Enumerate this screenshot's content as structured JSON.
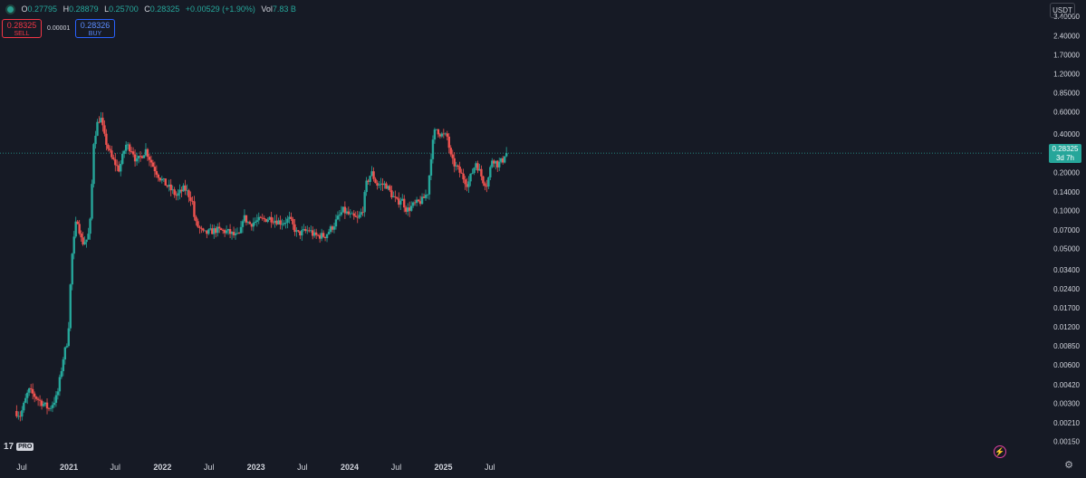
{
  "header": {
    "o_label": "O",
    "o_value": "0.27795",
    "h_label": "H",
    "h_value": "0.28879",
    "l_label": "L",
    "l_value": "0.25700",
    "c_label": "C",
    "c_value": "0.28325",
    "change": "+0.00529 (+1.90%)",
    "vol_label": "Vol",
    "vol_value": "7.83 B"
  },
  "trade": {
    "sell_price": "0.28325",
    "sell_label": "SELL",
    "spread": "0.00001",
    "buy_price": "0.28326",
    "buy_label": "BUY"
  },
  "currency": "USDT",
  "brand": {
    "logo": "17",
    "pro": "PRO"
  },
  "last_price": {
    "value": "0.28325",
    "countdown": "3d 7h",
    "color": "#26a69a"
  },
  "icons": {
    "bolt": "bolt-icon",
    "settings": "gear-icon"
  },
  "chart_data": {
    "type": "candlestick",
    "scale": "log",
    "title": "",
    "xlabel": "",
    "ylabel": "",
    "ylim": [
      0.00125,
      4.5
    ],
    "up_color": "#26a69a",
    "down_color": "#ef5350",
    "y_ticks": [
      "3.40000",
      "2.40000",
      "1.70000",
      "1.20000",
      "0.85000",
      "0.60000",
      "0.40000",
      "0.20000",
      "0.14000",
      "0.10000",
      "0.07000",
      "0.05000",
      "0.03400",
      "0.02400",
      "0.01700",
      "0.01200",
      "0.00850",
      "0.00600",
      "0.00420",
      "0.00300",
      "0.00210",
      "0.00150"
    ],
    "x_ticks": [
      "Jul",
      "2021",
      "Jul",
      "2022",
      "Jul",
      "2023",
      "Jul",
      "2024",
      "Jul",
      "2025",
      "Jul"
    ],
    "anchors": [
      [
        "2020-06-08",
        0.0026
      ],
      [
        "2020-06-30",
        0.0024
      ],
      [
        "2020-08-01",
        0.0038
      ],
      [
        "2020-09-15",
        0.0031
      ],
      [
        "2020-10-20",
        0.0027
      ],
      [
        "2020-11-20",
        0.0034
      ],
      [
        "2020-12-15",
        0.007
      ],
      [
        "2020-12-28",
        0.009
      ],
      [
        "2021-01-05",
        0.013
      ],
      [
        "2021-01-15",
        0.04
      ],
      [
        "2021-02-05",
        0.09
      ],
      [
        "2021-02-25",
        0.055
      ],
      [
        "2021-03-20",
        0.06
      ],
      [
        "2021-04-01",
        0.09
      ],
      [
        "2021-04-10",
        0.33
      ],
      [
        "2021-04-25",
        0.48
      ],
      [
        "2021-05-08",
        0.55
      ],
      [
        "2021-05-25",
        0.37
      ],
      [
        "2021-06-20",
        0.26
      ],
      [
        "2021-07-20",
        0.21
      ],
      [
        "2021-08-15",
        0.33
      ],
      [
        "2021-09-10",
        0.3
      ],
      [
        "2021-09-25",
        0.24
      ],
      [
        "2021-11-01",
        0.3
      ],
      [
        "2021-12-01",
        0.22
      ],
      [
        "2021-12-31",
        0.175
      ],
      [
        "2022-02-01",
        0.15
      ],
      [
        "2022-03-01",
        0.13
      ],
      [
        "2022-04-01",
        0.15
      ],
      [
        "2022-05-01",
        0.12
      ],
      [
        "2022-05-12",
        0.08
      ],
      [
        "2022-06-15",
        0.065
      ],
      [
        "2022-08-01",
        0.07
      ],
      [
        "2022-09-15",
        0.068
      ],
      [
        "2022-10-20",
        0.062
      ],
      [
        "2022-11-05",
        0.065
      ],
      [
        "2022-11-15",
        0.09
      ],
      [
        "2022-12-10",
        0.078
      ],
      [
        "2023-01-15",
        0.083
      ],
      [
        "2023-03-01",
        0.087
      ],
      [
        "2023-04-15",
        0.08
      ],
      [
        "2023-05-15",
        0.085
      ],
      [
        "2023-06-15",
        0.065
      ],
      [
        "2023-08-01",
        0.07
      ],
      [
        "2023-08-20",
        0.063
      ],
      [
        "2023-10-01",
        0.063
      ],
      [
        "2023-11-01",
        0.075
      ],
      [
        "2023-12-10",
        0.1
      ],
      [
        "2024-01-10",
        0.09
      ],
      [
        "2024-02-05",
        0.085
      ],
      [
        "2024-02-25",
        0.1
      ],
      [
        "2024-03-10",
        0.16
      ],
      [
        "2024-03-30",
        0.2
      ],
      [
        "2024-04-20",
        0.16
      ],
      [
        "2024-05-25",
        0.16
      ],
      [
        "2024-06-20",
        0.13
      ],
      [
        "2024-07-10",
        0.115
      ],
      [
        "2024-07-25",
        0.125
      ],
      [
        "2024-08-15",
        0.1
      ],
      [
        "2024-09-10",
        0.11
      ],
      [
        "2024-10-15",
        0.12
      ],
      [
        "2024-11-05",
        0.14
      ],
      [
        "2024-11-20",
        0.3
      ],
      [
        "2024-12-05",
        0.45
      ],
      [
        "2024-12-25",
        0.4
      ],
      [
        "2025-01-20",
        0.38
      ],
      [
        "2025-02-05",
        0.25
      ],
      [
        "2025-03-10",
        0.2
      ],
      [
        "2025-04-10",
        0.16
      ],
      [
        "2025-05-12",
        0.24
      ],
      [
        "2025-06-10",
        0.17
      ],
      [
        "2025-06-25",
        0.16
      ],
      [
        "2025-07-15",
        0.26
      ],
      [
        "2025-08-05",
        0.23
      ],
      [
        "2025-08-25",
        0.25
      ],
      [
        "2025-09-02",
        0.28325
      ]
    ]
  }
}
